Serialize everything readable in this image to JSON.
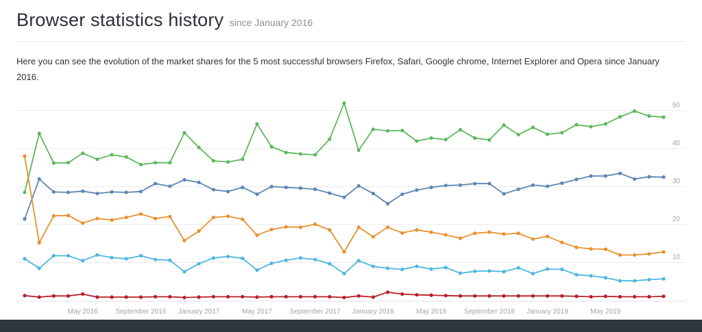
{
  "page": {
    "title": "Browser statistics history",
    "subtitle": "since January 2016",
    "intro": "Here you can see the evolution of the market shares for the 5 most successful browsers Firefox, Safari, Google chrome, Internet Explorer and Opera since January 2016."
  },
  "colors": {
    "chrome": "#5cb85c",
    "firefox": "#5b86b5",
    "safari": "#e8912c",
    "ie": "#4db6e0",
    "opera": "#b81e28"
  },
  "chart_data": {
    "type": "line",
    "title": "",
    "xlabel": "",
    "ylabel": "",
    "ylim": [
      0,
      55
    ],
    "yticks": [
      10,
      20,
      30,
      40,
      50
    ],
    "x_ticks": [
      {
        "index": 4,
        "label": "May 2016"
      },
      {
        "index": 8,
        "label": "September 2016"
      },
      {
        "index": 12,
        "label": "January 2017"
      },
      {
        "index": 16,
        "label": "May 2017"
      },
      {
        "index": 20,
        "label": "September 2017"
      },
      {
        "index": 24,
        "label": "January 2018"
      },
      {
        "index": 28,
        "label": "May 2018"
      },
      {
        "index": 32,
        "label": "September 2018"
      },
      {
        "index": 36,
        "label": "January 2019"
      },
      {
        "index": 40,
        "label": "May 2019"
      }
    ],
    "grid": true,
    "series": [
      {
        "key": "chrome",
        "values": [
          28.5,
          44.0,
          36.2,
          36.3,
          38.8,
          37.2,
          38.4,
          37.8,
          35.8,
          36.3,
          36.3,
          44.2,
          40.3,
          36.8,
          36.5,
          37.2,
          46.5,
          40.5,
          39.0,
          38.6,
          38.4,
          42.5,
          52.0,
          39.6,
          45.1,
          44.7,
          44.8,
          42.0,
          42.8,
          42.4,
          45.0,
          42.8,
          42.3,
          46.2,
          43.7,
          45.6,
          43.8,
          44.2,
          46.3,
          45.8,
          46.5,
          48.4,
          49.9,
          48.6,
          48.3
        ]
      },
      {
        "key": "firefox",
        "values": [
          21.5,
          32.0,
          28.6,
          28.5,
          28.8,
          28.2,
          28.6,
          28.5,
          28.7,
          30.8,
          30.1,
          31.8,
          31.1,
          29.2,
          28.7,
          29.8,
          28.0,
          30.0,
          29.8,
          29.6,
          29.3,
          28.3,
          27.2,
          30.2,
          28.2,
          25.5,
          28.0,
          29.1,
          29.8,
          30.3,
          30.4,
          30.8,
          30.8,
          28.1,
          29.3,
          30.4,
          30.1,
          30.9,
          31.9,
          32.8,
          32.8,
          33.5,
          32.0,
          32.6,
          32.5
        ]
      },
      {
        "key": "safari",
        "values": [
          38.0,
          15.2,
          22.3,
          22.4,
          20.4,
          21.6,
          21.2,
          21.9,
          22.8,
          21.6,
          22.1,
          15.8,
          18.3,
          21.9,
          22.2,
          21.4,
          17.2,
          18.7,
          19.4,
          19.3,
          20.1,
          18.6,
          12.8,
          19.3,
          16.8,
          19.3,
          17.8,
          18.6,
          18.0,
          17.3,
          16.4,
          17.7,
          18.0,
          17.5,
          17.7,
          16.2,
          16.9,
          15.3,
          14.0,
          13.6,
          13.5,
          12.0,
          12.0,
          12.3,
          12.8
        ]
      },
      {
        "key": "ie",
        "values": [
          11.0,
          8.5,
          11.8,
          11.8,
          10.5,
          12.0,
          11.3,
          11.0,
          11.8,
          10.8,
          10.6,
          7.6,
          9.7,
          11.2,
          11.6,
          11.1,
          8.0,
          9.8,
          10.6,
          11.2,
          10.8,
          9.7,
          7.1,
          10.5,
          9.0,
          8.5,
          8.2,
          9.0,
          8.3,
          8.7,
          7.2,
          7.7,
          7.8,
          7.6,
          8.6,
          7.1,
          8.3,
          8.2,
          6.8,
          6.5,
          6.0,
          5.2,
          5.2,
          5.5,
          5.7
        ]
      },
      {
        "key": "opera",
        "values": [
          1.3,
          0.9,
          1.2,
          1.2,
          1.7,
          0.9,
          0.9,
          0.9,
          0.9,
          1.0,
          1.0,
          0.8,
          0.9,
          1.0,
          1.0,
          1.0,
          0.9,
          1.0,
          1.0,
          1.0,
          1.0,
          1.0,
          0.8,
          1.2,
          0.9,
          2.2,
          1.7,
          1.5,
          1.4,
          1.3,
          1.2,
          1.2,
          1.2,
          1.2,
          1.2,
          1.2,
          1.2,
          1.2,
          1.1,
          1.0,
          1.1,
          1.0,
          1.0,
          1.0,
          1.1
        ]
      }
    ]
  }
}
